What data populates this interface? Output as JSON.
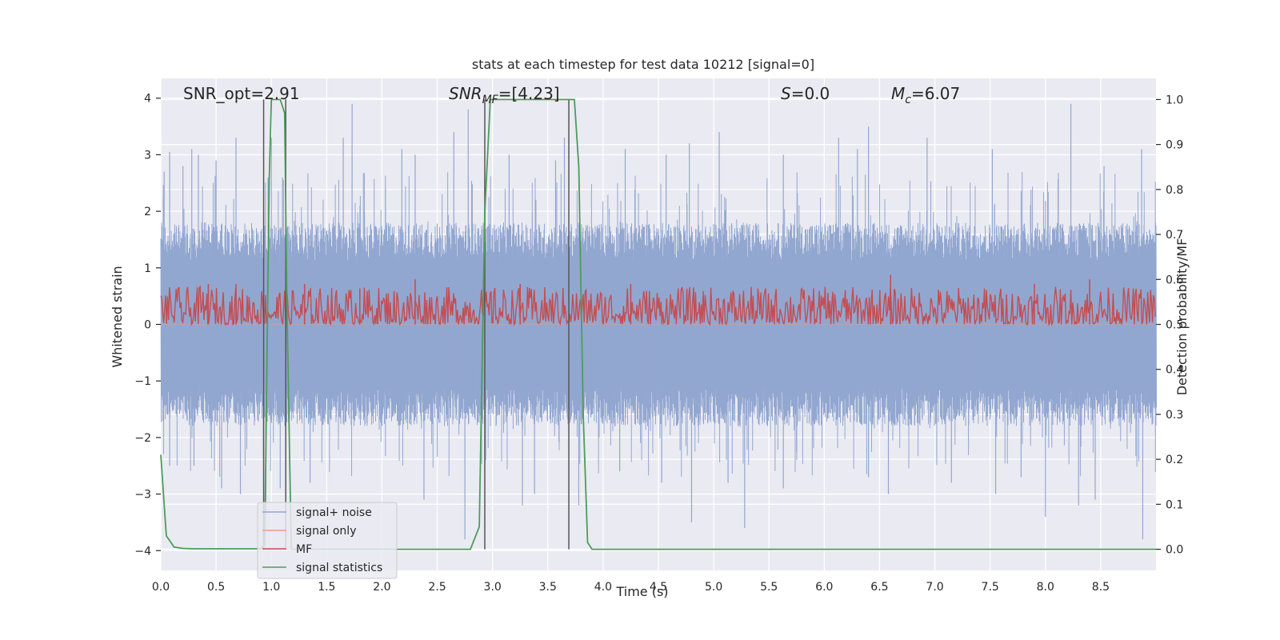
{
  "chart_data": {
    "type": "line",
    "title": "stats at each timestep for test data 10212 [signal=0]",
    "xlabel": "Time (s)",
    "ylabel": "Whitened strain",
    "y2label": "Detection probability/MF",
    "xlim": [
      0.0,
      9.0
    ],
    "ylim": [
      -4.35,
      4.35
    ],
    "y2lim": [
      -0.047,
      1.047
    ],
    "xticks": [
      "0.0",
      "0.5",
      "1.0",
      "1.5",
      "2.0",
      "2.5",
      "3.0",
      "3.5",
      "4.0",
      "4.5",
      "5.0",
      "5.5",
      "6.0",
      "6.5",
      "7.0",
      "7.5",
      "8.0",
      "8.5"
    ],
    "yticks": [
      4,
      3,
      2,
      1,
      0,
      -1,
      -2,
      -3,
      -4
    ],
    "ytick_labels": [
      "4",
      "3",
      "2",
      "1",
      "0",
      "−1",
      "−2",
      "−3",
      "−4"
    ],
    "y2ticks": [
      1.0,
      0.9,
      0.8,
      0.7,
      0.6,
      0.5,
      0.4,
      0.3,
      0.2,
      0.1,
      0.0
    ],
    "y2tick_labels": [
      "1.0",
      "0.9",
      "0.8",
      "0.7",
      "0.6",
      "0.5",
      "0.4",
      "0.3",
      "0.2",
      "0.1",
      "0.0"
    ],
    "grid": true,
    "legend_position": "lower-left",
    "annotations": {
      "snr_opt": "SNR_opt=2.91",
      "snr_mf_main": "SNR",
      "snr_mf_sub": "MF",
      "snr_mf_rest": "=[4.23]",
      "s_italic": "S",
      "s_rest": "=0.0",
      "mc_main": "M",
      "mc_sub": "c",
      "mc_rest": "=6.07"
    },
    "series": [
      {
        "name": "signal+ noise",
        "axis": "left",
        "color": "#92a7d0",
        "description_stats": {
          "typical_range": [
            -1.5,
            1.5
          ],
          "max": 3.9,
          "min": -3.8
        },
        "spikes": [
          [
            0.03,
            2.7
          ],
          [
            0.08,
            3.05
          ],
          [
            0.2,
            2.8
          ],
          [
            0.28,
            3.1
          ],
          [
            0.34,
            3.0
          ],
          [
            0.5,
            2.9
          ],
          [
            0.68,
            3.3
          ],
          [
            0.97,
            2.6
          ],
          [
            1.0,
            3.3
          ],
          [
            1.1,
            2.6
          ],
          [
            1.65,
            3.3
          ],
          [
            1.73,
            3.9
          ],
          [
            2.18,
            3.1
          ],
          [
            2.3,
            3.0
          ],
          [
            2.65,
            3.4
          ],
          [
            2.78,
            3.8
          ],
          [
            3.15,
            3.0
          ],
          [
            3.57,
            2.9
          ],
          [
            3.65,
            3.3
          ],
          [
            4.2,
            3.1
          ],
          [
            4.57,
            3.0
          ],
          [
            4.78,
            3.2
          ],
          [
            5.05,
            3.4
          ],
          [
            5.63,
            3.0
          ],
          [
            6.13,
            3.3
          ],
          [
            6.3,
            3.1
          ],
          [
            6.4,
            3.5
          ],
          [
            6.93,
            3.3
          ],
          [
            7.52,
            3.1
          ],
          [
            8.23,
            3.9
          ],
          [
            8.53,
            2.8
          ],
          [
            8.87,
            3.1
          ],
          [
            0.08,
            -2.5
          ],
          [
            0.3,
            -2.5
          ],
          [
            0.55,
            -2.9
          ],
          [
            0.72,
            -3.0
          ],
          [
            0.95,
            -3.3
          ],
          [
            1.08,
            -2.9
          ],
          [
            1.35,
            -2.8
          ],
          [
            2.38,
            -3.1
          ],
          [
            2.75,
            -3.8
          ],
          [
            3.27,
            -3.2
          ],
          [
            3.38,
            -3.0
          ],
          [
            3.78,
            -3.2
          ],
          [
            4.15,
            -2.6
          ],
          [
            4.53,
            -2.8
          ],
          [
            4.8,
            -3.5
          ],
          [
            5.13,
            -2.8
          ],
          [
            5.28,
            -3.6
          ],
          [
            5.63,
            -2.9
          ],
          [
            6.4,
            -2.7
          ],
          [
            6.58,
            -3.0
          ],
          [
            7.15,
            -2.8
          ],
          [
            7.55,
            -3.0
          ],
          [
            7.78,
            -2.7
          ],
          [
            8.0,
            -3.4
          ],
          [
            8.3,
            -3.2
          ],
          [
            8.45,
            -3.1
          ],
          [
            8.88,
            -3.8
          ]
        ]
      },
      {
        "name": "signal only",
        "axis": "left",
        "color": "#e8a088",
        "values": [
          0.0,
          0.0
        ]
      },
      {
        "name": "MF",
        "axis": "right",
        "color": "#c44e52",
        "description_stats": {
          "baseline": 0.5,
          "typical_range": [
            0.5,
            0.58
          ],
          "max": 0.62
        },
        "peaks": [
          [
            0.43,
            0.59
          ],
          [
            0.68,
            0.59
          ],
          [
            1.3,
            0.59
          ],
          [
            1.8,
            0.58
          ],
          [
            2.3,
            0.6
          ],
          [
            3.25,
            0.59
          ],
          [
            4.25,
            0.59
          ],
          [
            6.6,
            0.61
          ],
          [
            7.9,
            0.59
          ],
          [
            8.4,
            0.6
          ]
        ]
      },
      {
        "name": "signal statistics",
        "axis": "right",
        "color": "#4c9c5b",
        "x": [
          0.0,
          0.05,
          0.12,
          0.2,
          0.3,
          0.5,
          0.7,
          0.9,
          0.94,
          0.98,
          1.0,
          1.05,
          1.08,
          1.12,
          1.14,
          1.18,
          1.3,
          2.8,
          2.88,
          2.93,
          2.98,
          3.02,
          3.3,
          3.6,
          3.7,
          3.74,
          3.78,
          3.82,
          3.86,
          3.9,
          4.5,
          9.0
        ],
        "values": [
          0.21,
          0.03,
          0.005,
          0.002,
          0.001,
          0.001,
          0.001,
          0.001,
          0.01,
          0.82,
          1.0,
          1.0,
          1.0,
          0.97,
          0.55,
          0.0,
          0.0,
          0.0,
          0.05,
          0.75,
          1.0,
          1.0,
          1.0,
          1.0,
          1.0,
          1.0,
          0.85,
          0.3,
          0.015,
          0.0,
          0.0,
          0.0
        ]
      }
    ],
    "detection_markers": {
      "color": "#555555",
      "x": [
        0.93,
        1.13,
        2.93,
        3.69
      ]
    }
  }
}
